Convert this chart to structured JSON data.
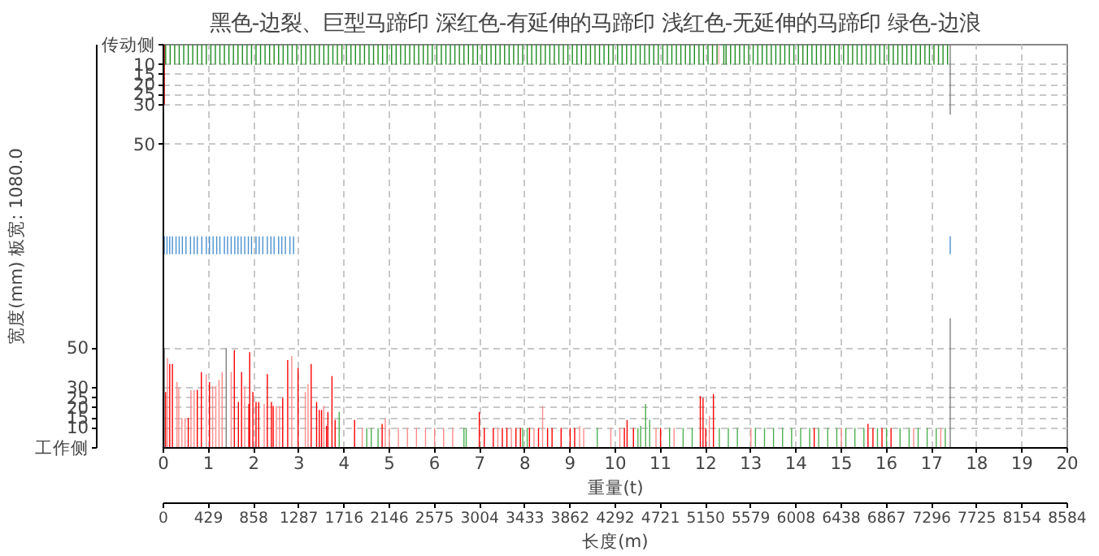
{
  "chart_data": {
    "type": "bar",
    "title": "黑色-边裂、巨型马蹄印   深红色-有延伸的马蹄印   浅红色-无延伸的马蹄印   绿色-边浪",
    "xlabel": "重量(t)",
    "ylabel": "宽度(mm) 板宽: 1080.0",
    "x2label": "长度(m)",
    "xlim": [
      0,
      20
    ],
    "xticks": [
      0,
      1,
      2,
      3,
      4,
      5,
      6,
      7,
      8,
      9,
      10,
      11,
      12,
      13,
      14,
      15,
      16,
      17,
      18,
      19,
      20
    ],
    "x2lim": [
      0,
      8584
    ],
    "x2ticks": [
      0,
      429,
      858,
      1287,
      1716,
      2146,
      2575,
      3004,
      3433,
      3862,
      4292,
      4721,
      5150,
      5579,
      6008,
      6438,
      6867,
      7296,
      7725,
      8154,
      8584
    ],
    "ylim": [
      0,
      202
    ],
    "yticks": [
      {
        "value": 0,
        "label": "工作侧"
      },
      10,
      15,
      20,
      25,
      30,
      50
    ],
    "y2lim": [
      202,
      0
    ],
    "y2ticks": [
      {
        "value": 0,
        "label": "传动侧"
      },
      10,
      15,
      20,
      25,
      30,
      50
    ],
    "grid": true,
    "series": [
      {
        "color": "#808080",
        "x": [
          0.02,
          1.39,
          17.41
        ],
        "values": [
          50,
          50,
          65
        ]
      },
      {
        "color": "#808080",
        "axis": "y2",
        "x": [
          17.41
        ],
        "values": [
          35
        ]
      },
      {
        "color": "#ff0000",
        "x": [
          0.05,
          0.14,
          0.2,
          0.55,
          0.75,
          0.84,
          1.02,
          1.57,
          1.66,
          1.73,
          1.89,
          1.91,
          1.98,
          2.05,
          2.11,
          2.3,
          2.39,
          2.43,
          2.64,
          2.75,
          2.98,
          3.27,
          3.39,
          3.45,
          3.5,
          3.61,
          3.64,
          3.73,
          3.8,
          4.23,
          4.84,
          6.99,
          7.1,
          7.3,
          7.5,
          7.6,
          7.8,
          7.9,
          8.1,
          8.3,
          8.5,
          8.6,
          8.8,
          9.0,
          9.1,
          10.2,
          10.26,
          10.4,
          11.0,
          11.88,
          11.94,
          12.0,
          12.17,
          14.4,
          15.59,
          15.7,
          15.9,
          16.1
        ],
        "values": [
          28,
          42,
          42,
          15,
          29,
          38,
          33,
          49,
          23,
          38,
          22,
          48,
          28,
          23,
          23,
          37,
          23,
          21,
          25,
          44,
          40,
          42,
          23,
          19,
          19,
          11,
          18,
          36,
          14,
          14,
          12,
          18,
          10,
          10,
          10,
          10,
          10,
          10,
          10,
          10,
          10,
          10,
          10,
          10,
          10,
          10,
          14,
          10,
          10,
          26,
          25,
          10,
          27,
          10,
          12,
          10,
          10,
          10
        ]
      },
      {
        "color": "#c00000",
        "axis": "y2",
        "x": [
          0.02
        ],
        "values": [
          30
        ]
      },
      {
        "color": "#ff8a8a",
        "x": [
          0.09,
          0.3,
          0.34,
          0.41,
          0.48,
          0.61,
          0.68,
          0.95,
          1.09,
          1.16,
          1.23,
          1.3,
          1.5,
          1.8,
          2.23,
          2.5,
          2.57,
          2.84,
          3.14,
          3.2,
          3.55,
          4.4,
          4.91,
          5.0,
          5.2,
          5.4,
          5.6,
          5.8,
          6.0,
          6.2,
          6.4,
          7.4,
          7.7,
          8.2,
          8.39,
          9.21,
          9.3,
          9.9,
          10.1,
          10.9,
          11.3,
          12.08,
          13.0,
          15.0,
          16.6,
          17.2
        ],
        "values": [
          45,
          33,
          30,
          15,
          15,
          29,
          29,
          37,
          31,
          31,
          34,
          38,
          38,
          31,
          22,
          21,
          21,
          46,
          28,
          32,
          21,
          10,
          15,
          10,
          10,
          10,
          10,
          10,
          10,
          10,
          10,
          10,
          10,
          10,
          21,
          11,
          10,
          10,
          10,
          10,
          10,
          16,
          10,
          10,
          10,
          10
        ]
      },
      {
        "color": "#ffb0b0",
        "axis": "y2",
        "x": [
          12.29
        ],
        "values": [
          10
        ]
      },
      {
        "color": "#4caf50",
        "x": [
          3.89,
          4.5,
          4.6,
          4.75,
          6.65,
          6.7,
          7.95,
          8.05,
          9.6,
          10.5,
          10.56,
          10.67,
          10.76,
          11.2,
          11.5,
          11.7,
          12.3,
          12.5,
          12.7,
          13.1,
          13.3,
          13.5,
          13.7,
          13.9,
          14.1,
          14.3,
          14.5,
          14.7,
          14.9,
          15.1,
          15.3,
          15.5,
          15.8,
          16.0,
          16.3,
          16.5,
          16.7,
          16.9,
          17.1,
          17.3
        ],
        "values": [
          18,
          10,
          10,
          10,
          10,
          10,
          10,
          10,
          10,
          10,
          11,
          22,
          14,
          10,
          10,
          10,
          10,
          10,
          10,
          10,
          10,
          10,
          10,
          10,
          10,
          10,
          10,
          10,
          10,
          10,
          10,
          10,
          10,
          10,
          10,
          10,
          10,
          10,
          10,
          10
        ]
      },
      {
        "color": "#1e8c1e",
        "axis": "y2",
        "x": [
          0.05,
          0.15,
          0.25,
          0.35,
          0.45,
          0.55,
          0.65,
          0.75,
          0.85,
          0.95,
          1.05,
          1.15,
          1.25,
          1.35,
          1.45,
          1.55,
          1.65,
          1.75,
          1.85,
          1.95,
          2.05,
          2.15,
          2.25,
          2.35,
          2.45,
          2.55,
          2.65,
          2.75,
          2.85,
          2.95,
          3.05,
          3.15,
          3.25,
          3.35,
          3.45,
          3.55,
          3.65,
          3.75,
          3.85,
          3.95,
          4.05,
          4.15,
          4.25,
          4.35,
          4.45,
          4.55,
          4.65,
          4.75,
          4.85,
          4.95,
          5.05,
          5.15,
          5.25,
          5.35,
          5.45,
          5.55,
          5.65,
          5.75,
          5.85,
          5.95,
          6.05,
          6.15,
          6.25,
          6.35,
          6.45,
          6.55,
          6.65,
          6.75,
          6.85,
          6.95,
          7.05,
          7.15,
          7.25,
          7.35,
          7.45,
          7.55,
          7.65,
          7.75,
          7.85,
          7.95,
          8.05,
          8.15,
          8.25,
          8.35,
          8.45,
          8.55,
          8.65,
          8.75,
          8.85,
          8.95,
          9.05,
          9.15,
          9.25,
          9.35,
          9.45,
          9.55,
          9.65,
          9.75,
          9.85,
          9.95,
          10.05,
          10.15,
          10.25,
          10.35,
          10.45,
          10.55,
          10.65,
          10.75,
          10.85,
          10.95,
          11.05,
          11.15,
          11.25,
          11.35,
          11.45,
          11.55,
          11.65,
          11.75,
          11.85,
          11.95,
          12.05,
          12.15,
          12.25,
          12.4,
          12.45,
          12.55,
          12.65,
          12.75,
          12.85,
          12.95,
          13.05,
          13.15,
          13.25,
          13.35,
          13.45,
          13.55,
          13.65,
          13.75,
          13.85,
          13.95,
          14.05,
          14.15,
          14.25,
          14.35,
          14.45,
          14.55,
          14.65,
          14.75,
          14.85,
          14.95,
          15.05,
          15.15,
          15.25,
          15.35,
          15.45,
          15.55,
          15.65,
          15.75,
          15.85,
          15.95,
          16.05,
          16.15,
          16.25,
          16.35,
          16.45,
          16.55,
          16.65,
          16.75,
          16.85,
          16.95,
          17.05,
          17.15,
          17.25,
          17.35
        ],
        "values": [
          10,
          10,
          10,
          10,
          10,
          10,
          10,
          10,
          10,
          10,
          10,
          10,
          10,
          10,
          10,
          10,
          10,
          10,
          10,
          10,
          10,
          10,
          10,
          10,
          10,
          10,
          10,
          10,
          10,
          10,
          10,
          10,
          10,
          10,
          10,
          10,
          10,
          10,
          10,
          10,
          10,
          10,
          10,
          10,
          10,
          10,
          10,
          10,
          10,
          10,
          10,
          10,
          10,
          10,
          10,
          10,
          10,
          10,
          10,
          10,
          10,
          10,
          10,
          10,
          10,
          10,
          10,
          10,
          10,
          10,
          10,
          10,
          10,
          10,
          10,
          10,
          10,
          10,
          10,
          10,
          10,
          10,
          10,
          10,
          10,
          10,
          10,
          10,
          10,
          10,
          10,
          10,
          10,
          10,
          10,
          10,
          10,
          10,
          10,
          10,
          10,
          10,
          10,
          10,
          10,
          10,
          10,
          10,
          10,
          10,
          10,
          10,
          10,
          10,
          10,
          10,
          10,
          10,
          10,
          10,
          10,
          10,
          10,
          10,
          10,
          10,
          10,
          10,
          10,
          10,
          10,
          10,
          10,
          10,
          10,
          10,
          10,
          10,
          10,
          10,
          10,
          10,
          10,
          10,
          10,
          10,
          10,
          10,
          10,
          10,
          10,
          10,
          10,
          10,
          10,
          10,
          10,
          10,
          10,
          10,
          10,
          10,
          10,
          10,
          10,
          10,
          10,
          10,
          10,
          10,
          10,
          10,
          10,
          10
        ]
      },
      {
        "color": "#4a90d0",
        "x": [
          0.02,
          0.08,
          0.14,
          0.2,
          0.28,
          0.35,
          0.42,
          0.5,
          0.6,
          0.68,
          0.75,
          0.85,
          0.95,
          1.02,
          1.1,
          1.18,
          1.25,
          1.35,
          1.42,
          1.5,
          1.58,
          1.65,
          1.72,
          1.8,
          1.88,
          1.95,
          2.05,
          2.12,
          2.2,
          2.3,
          2.38,
          2.45,
          2.55,
          2.62,
          2.7,
          2.8,
          2.88,
          17.41
        ],
        "values": [
          9,
          9,
          9,
          9,
          9,
          9,
          9,
          9,
          9,
          9,
          9,
          9,
          9,
          9,
          9,
          9,
          9,
          9,
          9,
          9,
          9,
          9,
          9,
          9,
          9,
          9,
          9,
          9,
          9,
          9,
          9,
          9,
          9,
          9,
          9,
          9,
          9,
          9
        ],
        "base": [
          97,
          97,
          97,
          97,
          97,
          97,
          97,
          97,
          97,
          97,
          97,
          97,
          97,
          97,
          97,
          97,
          97,
          97,
          97,
          97,
          97,
          97,
          97,
          97,
          97,
          97,
          97,
          97,
          97,
          97,
          97,
          97,
          97,
          97,
          97,
          97,
          97,
          97
        ]
      }
    ]
  }
}
